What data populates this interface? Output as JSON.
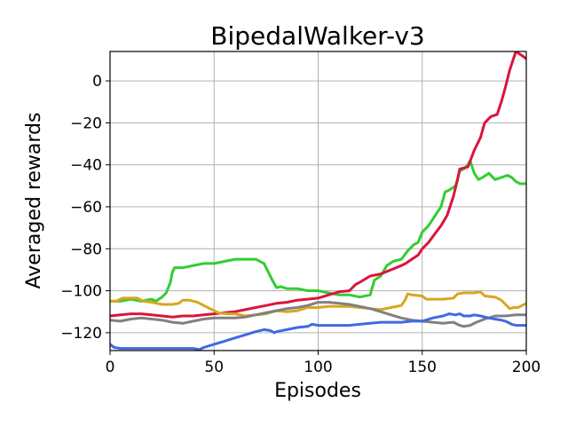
{
  "chart_data": {
    "type": "line",
    "title": "BipedalWalker-v3",
    "xlabel": "Episodes",
    "ylabel": "Averaged rewards",
    "xlim": [
      0,
      200
    ],
    "ylim": [
      -128.5,
      14
    ],
    "xticks": [
      0,
      50,
      100,
      150,
      200
    ],
    "yticks": [
      -120,
      -100,
      -80,
      -60,
      -40,
      -20,
      0
    ],
    "xtick_labels": [
      "0",
      "50",
      "100",
      "150",
      "200"
    ],
    "ytick_labels": [
      "−120",
      "−100",
      "−80",
      "−60",
      "−40",
      "−20",
      "0"
    ],
    "grid": true,
    "legend": "none",
    "series": [
      {
        "color": "#32cd32",
        "points": [
          [
            0,
            -105
          ],
          [
            5,
            -105
          ],
          [
            10,
            -104
          ],
          [
            15,
            -105
          ],
          [
            20,
            -104
          ],
          [
            22,
            -105
          ],
          [
            25,
            -103
          ],
          [
            27,
            -101
          ],
          [
            29,
            -96
          ],
          [
            30,
            -91
          ],
          [
            31,
            -89
          ],
          [
            35,
            -89
          ],
          [
            40,
            -88
          ],
          [
            45,
            -87
          ],
          [
            50,
            -87
          ],
          [
            55,
            -86
          ],
          [
            60,
            -85
          ],
          [
            65,
            -85
          ],
          [
            70,
            -85
          ],
          [
            74,
            -87
          ],
          [
            76,
            -91
          ],
          [
            78,
            -95
          ],
          [
            80,
            -98.5
          ],
          [
            82,
            -98
          ],
          [
            85,
            -99
          ],
          [
            90,
            -99
          ],
          [
            95,
            -100
          ],
          [
            100,
            -100
          ],
          [
            105,
            -101
          ],
          [
            110,
            -102
          ],
          [
            115,
            -102
          ],
          [
            120,
            -103
          ],
          [
            125,
            -102
          ],
          [
            127,
            -95
          ],
          [
            130,
            -93
          ],
          [
            133,
            -88
          ],
          [
            136,
            -86
          ],
          [
            140,
            -85
          ],
          [
            143,
            -81
          ],
          [
            146,
            -78
          ],
          [
            148,
            -77
          ],
          [
            150,
            -72
          ],
          [
            153,
            -69
          ],
          [
            155,
            -66
          ],
          [
            157,
            -63
          ],
          [
            159,
            -60
          ],
          [
            161,
            -53
          ],
          [
            163,
            -52
          ],
          [
            166,
            -50
          ],
          [
            168,
            -43
          ],
          [
            170,
            -42
          ],
          [
            172,
            -40
          ],
          [
            173,
            -38
          ],
          [
            175,
            -44
          ],
          [
            177,
            -47
          ],
          [
            179,
            -46
          ],
          [
            182,
            -44
          ],
          [
            185,
            -47
          ],
          [
            188,
            -46
          ],
          [
            191,
            -45
          ],
          [
            193,
            -46
          ],
          [
            195,
            -48
          ],
          [
            197,
            -49
          ],
          [
            200,
            -49
          ]
        ]
      },
      {
        "color": "#dc143c",
        "points": [
          [
            0,
            -112
          ],
          [
            5,
            -111.5
          ],
          [
            10,
            -111
          ],
          [
            15,
            -111
          ],
          [
            20,
            -111.5
          ],
          [
            25,
            -112
          ],
          [
            30,
            -112.5
          ],
          [
            35,
            -112
          ],
          [
            40,
            -112
          ],
          [
            45,
            -111.5
          ],
          [
            50,
            -111
          ],
          [
            55,
            -110.5
          ],
          [
            60,
            -110
          ],
          [
            65,
            -109
          ],
          [
            70,
            -108
          ],
          [
            75,
            -107
          ],
          [
            80,
            -106
          ],
          [
            85,
            -105.5
          ],
          [
            90,
            -104.5
          ],
          [
            95,
            -104
          ],
          [
            100,
            -103.5
          ],
          [
            105,
            -102
          ],
          [
            110,
            -100.5
          ],
          [
            115,
            -100
          ],
          [
            118,
            -97
          ],
          [
            120,
            -96
          ],
          [
            125,
            -93
          ],
          [
            130,
            -92
          ],
          [
            135,
            -90
          ],
          [
            140,
            -88
          ],
          [
            142,
            -87
          ],
          [
            145,
            -85
          ],
          [
            148,
            -83
          ],
          [
            150,
            -80
          ],
          [
            153,
            -77
          ],
          [
            156,
            -73
          ],
          [
            159,
            -69
          ],
          [
            162,
            -64
          ],
          [
            165,
            -55
          ],
          [
            167,
            -47
          ],
          [
            168,
            -42
          ],
          [
            172,
            -41
          ],
          [
            175,
            -33
          ],
          [
            178,
            -27
          ],
          [
            180,
            -20
          ],
          [
            183,
            -17
          ],
          [
            186,
            -16
          ],
          [
            188,
            -10
          ],
          [
            190,
            -3
          ],
          [
            192,
            5
          ],
          [
            194,
            11
          ],
          [
            195,
            14
          ],
          [
            198,
            12
          ],
          [
            200,
            10.5
          ]
        ]
      },
      {
        "color": "#daa520",
        "points": [
          [
            0,
            -105
          ],
          [
            3,
            -105
          ],
          [
            6,
            -103.5
          ],
          [
            10,
            -103.5
          ],
          [
            13,
            -103.5
          ],
          [
            16,
            -105
          ],
          [
            20,
            -105.5
          ],
          [
            25,
            -106.5
          ],
          [
            30,
            -106.5
          ],
          [
            33,
            -106
          ],
          [
            35,
            -104.5
          ],
          [
            38,
            -104.5
          ],
          [
            42,
            -105.5
          ],
          [
            45,
            -107
          ],
          [
            48,
            -108.5
          ],
          [
            52,
            -110.5
          ],
          [
            56,
            -111
          ],
          [
            60,
            -111
          ],
          [
            65,
            -112
          ],
          [
            70,
            -111.5
          ],
          [
            75,
            -111
          ],
          [
            80,
            -109.5
          ],
          [
            85,
            -110
          ],
          [
            90,
            -109.5
          ],
          [
            95,
            -108
          ],
          [
            100,
            -108
          ],
          [
            105,
            -107.5
          ],
          [
            110,
            -107.5
          ],
          [
            115,
            -107.5
          ],
          [
            120,
            -108
          ],
          [
            125,
            -108.5
          ],
          [
            130,
            -109
          ],
          [
            135,
            -108
          ],
          [
            140,
            -107
          ],
          [
            142,
            -104
          ],
          [
            143,
            -101.5
          ],
          [
            145,
            -102
          ],
          [
            150,
            -102.5
          ],
          [
            152,
            -104
          ],
          [
            155,
            -104
          ],
          [
            160,
            -104
          ],
          [
            165,
            -103.5
          ],
          [
            167,
            -101.5
          ],
          [
            170,
            -101
          ],
          [
            175,
            -101
          ],
          [
            178,
            -100.5
          ],
          [
            180,
            -102.5
          ],
          [
            185,
            -103
          ],
          [
            188,
            -104.5
          ],
          [
            190,
            -106.5
          ],
          [
            192,
            -108.5
          ],
          [
            194,
            -108
          ],
          [
            196,
            -108
          ],
          [
            198,
            -107
          ],
          [
            200,
            -106
          ]
        ]
      },
      {
        "color": "#808080",
        "points": [
          [
            0,
            -114
          ],
          [
            5,
            -114.5
          ],
          [
            10,
            -113.5
          ],
          [
            15,
            -113
          ],
          [
            20,
            -113.5
          ],
          [
            25,
            -114
          ],
          [
            30,
            -115
          ],
          [
            35,
            -115.5
          ],
          [
            40,
            -114.5
          ],
          [
            45,
            -113.5
          ],
          [
            50,
            -113
          ],
          [
            55,
            -113
          ],
          [
            60,
            -113
          ],
          [
            65,
            -112.5
          ],
          [
            70,
            -111.5
          ],
          [
            75,
            -110.5
          ],
          [
            80,
            -109.5
          ],
          [
            85,
            -108.5
          ],
          [
            90,
            -108
          ],
          [
            95,
            -107
          ],
          [
            100,
            -105.5
          ],
          [
            105,
            -105.5
          ],
          [
            110,
            -106
          ],
          [
            115,
            -106.5
          ],
          [
            120,
            -107.5
          ],
          [
            125,
            -108.5
          ],
          [
            130,
            -110
          ],
          [
            135,
            -111.5
          ],
          [
            140,
            -113
          ],
          [
            145,
            -114
          ],
          [
            150,
            -114.5
          ],
          [
            155,
            -115
          ],
          [
            160,
            -115.5
          ],
          [
            165,
            -115
          ],
          [
            168,
            -116.5
          ],
          [
            170,
            -117
          ],
          [
            173,
            -116.5
          ],
          [
            176,
            -115
          ],
          [
            180,
            -113.5
          ],
          [
            185,
            -112
          ],
          [
            190,
            -112
          ],
          [
            195,
            -111.5
          ],
          [
            200,
            -111.5
          ]
        ]
      },
      {
        "color": "#4169e1",
        "points": [
          [
            0,
            -125.5
          ],
          [
            2,
            -127
          ],
          [
            5,
            -127.5
          ],
          [
            10,
            -127.5
          ],
          [
            20,
            -127.5
          ],
          [
            30,
            -127.5
          ],
          [
            40,
            -127.5
          ],
          [
            43,
            -128
          ],
          [
            45,
            -127
          ],
          [
            50,
            -125.5
          ],
          [
            55,
            -124
          ],
          [
            60,
            -122.5
          ],
          [
            65,
            -121
          ],
          [
            70,
            -119.5
          ],
          [
            74,
            -118.5
          ],
          [
            77,
            -119
          ],
          [
            79,
            -120
          ],
          [
            80,
            -119.5
          ],
          [
            85,
            -118.5
          ],
          [
            90,
            -117.5
          ],
          [
            95,
            -117
          ],
          [
            97,
            -116
          ],
          [
            100,
            -116.5
          ],
          [
            105,
            -116.5
          ],
          [
            110,
            -116.5
          ],
          [
            115,
            -116.5
          ],
          [
            120,
            -116
          ],
          [
            125,
            -115.5
          ],
          [
            130,
            -115
          ],
          [
            135,
            -115
          ],
          [
            140,
            -115
          ],
          [
            145,
            -114.5
          ],
          [
            150,
            -114.5
          ],
          [
            155,
            -113
          ],
          [
            160,
            -112
          ],
          [
            163,
            -111
          ],
          [
            166,
            -111.5
          ],
          [
            168,
            -111
          ],
          [
            170,
            -112
          ],
          [
            173,
            -112
          ],
          [
            175,
            -111.5
          ],
          [
            178,
            -112
          ],
          [
            182,
            -113
          ],
          [
            185,
            -113.5
          ],
          [
            188,
            -114
          ],
          [
            190,
            -114.5
          ],
          [
            193,
            -116
          ],
          [
            195,
            -116.5
          ],
          [
            200,
            -116.5
          ]
        ]
      }
    ]
  }
}
